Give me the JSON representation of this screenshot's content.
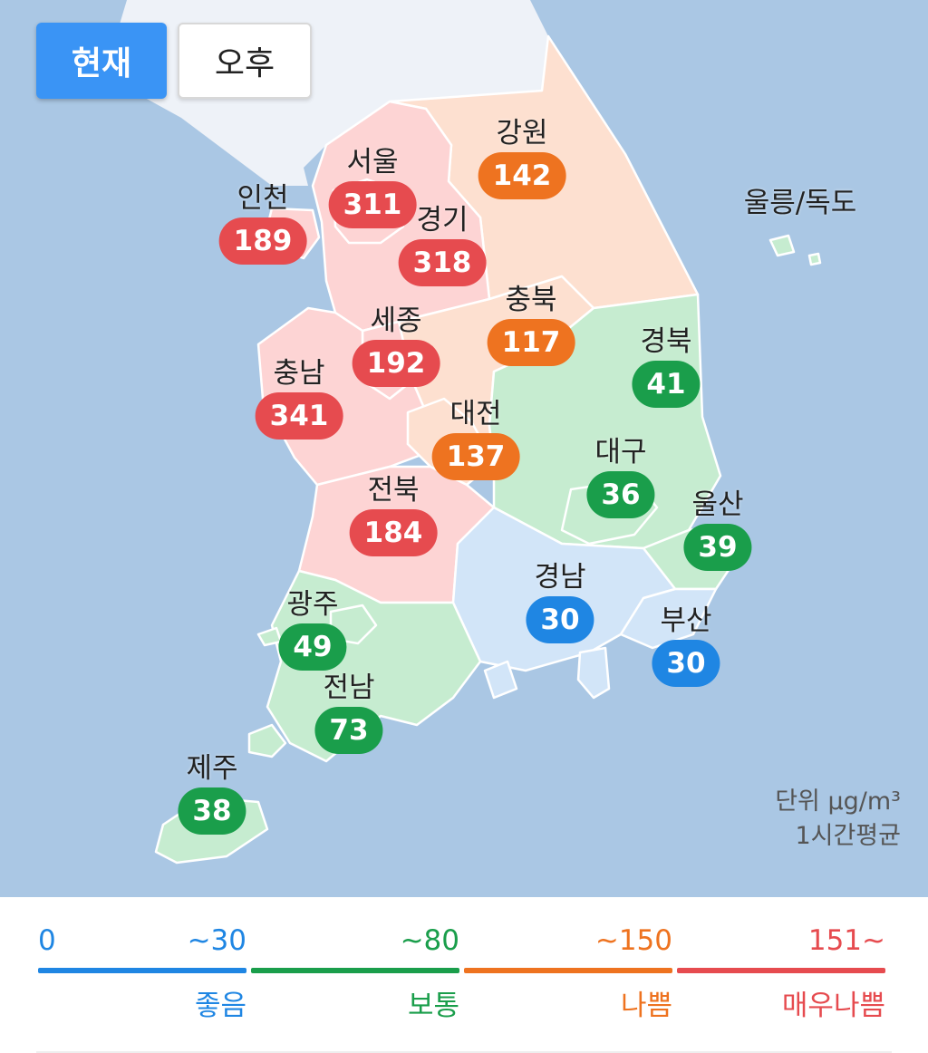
{
  "tabs": [
    {
      "label": "현재",
      "active": true
    },
    {
      "label": "오후",
      "active": false
    }
  ],
  "colors": {
    "good": "#1f86e3",
    "normal": "#1a9e4b",
    "bad": "#ee7320",
    "very_bad": "#e64b4f",
    "sea": "#aac7e4",
    "north": "#eef2f8"
  },
  "regions": [
    {
      "key": "seoul",
      "name": "서울",
      "value": "311",
      "grade": "very_bad"
    },
    {
      "key": "incheon",
      "name": "인천",
      "value": "189",
      "grade": "very_bad"
    },
    {
      "key": "gyeonggi",
      "name": "경기",
      "value": "318",
      "grade": "very_bad"
    },
    {
      "key": "gangwon",
      "name": "강원",
      "value": "142",
      "grade": "bad"
    },
    {
      "key": "chungbuk",
      "name": "충북",
      "value": "117",
      "grade": "bad"
    },
    {
      "key": "sejong",
      "name": "세종",
      "value": "192",
      "grade": "very_bad"
    },
    {
      "key": "chungnam",
      "name": "충남",
      "value": "341",
      "grade": "very_bad"
    },
    {
      "key": "daejeon",
      "name": "대전",
      "value": "137",
      "grade": "bad"
    },
    {
      "key": "gyeongbuk",
      "name": "경북",
      "value": "41",
      "grade": "normal"
    },
    {
      "key": "daegu",
      "name": "대구",
      "value": "36",
      "grade": "normal"
    },
    {
      "key": "ulsan",
      "name": "울산",
      "value": "39",
      "grade": "normal"
    },
    {
      "key": "jeonbuk",
      "name": "전북",
      "value": "184",
      "grade": "very_bad"
    },
    {
      "key": "gyeongnam",
      "name": "경남",
      "value": "30",
      "grade": "good"
    },
    {
      "key": "busan",
      "name": "부산",
      "value": "30",
      "grade": "good"
    },
    {
      "key": "gwangju",
      "name": "광주",
      "value": "49",
      "grade": "normal"
    },
    {
      "key": "jeonnam",
      "name": "전남",
      "value": "73",
      "grade": "normal"
    },
    {
      "key": "jeju",
      "name": "제주",
      "value": "38",
      "grade": "normal"
    },
    {
      "key": "ulleung",
      "name": "울릉/독도",
      "value": null,
      "grade": "normal"
    }
  ],
  "unit_note": {
    "unit": "단위 µg/m³",
    "average": "1시간평균"
  },
  "legend": [
    {
      "low": "0",
      "high": "~30",
      "grade_label": "좋음",
      "grade": "good"
    },
    {
      "low": "",
      "high": "~80",
      "grade_label": "보통",
      "grade": "normal"
    },
    {
      "low": "",
      "high": "~150",
      "grade_label": "나쁨",
      "grade": "bad"
    },
    {
      "low": "",
      "high": "151~",
      "grade_label": "매우나쁨",
      "grade": "very_bad"
    }
  ]
}
